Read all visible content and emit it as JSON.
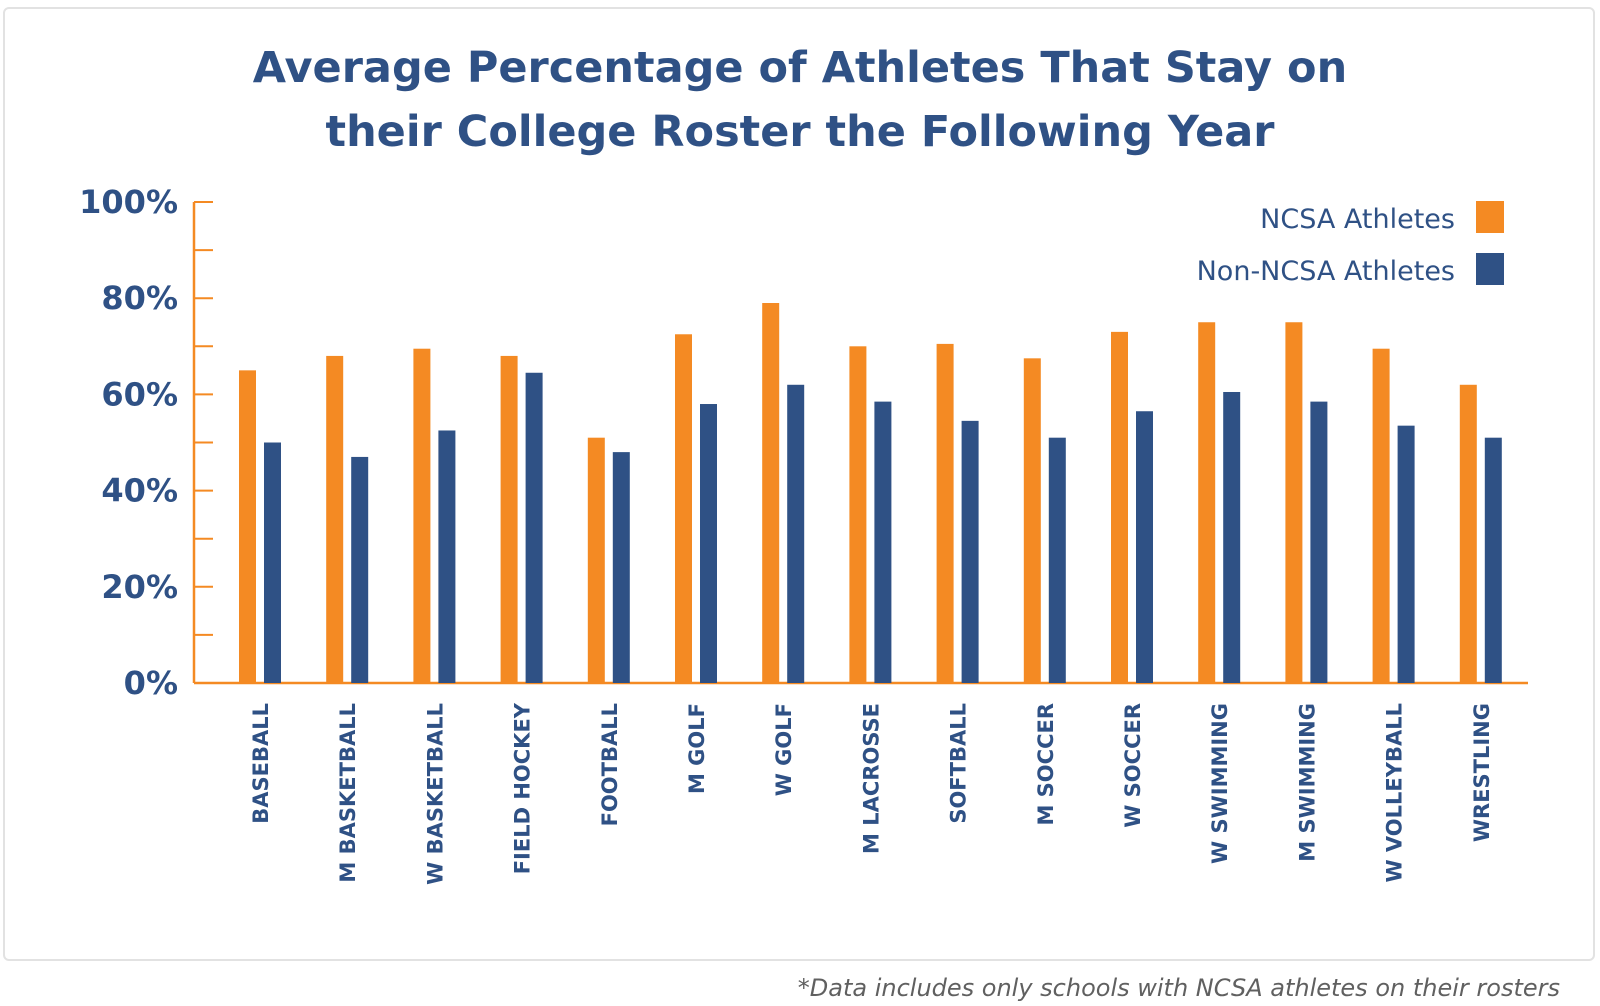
{
  "title_line1": "Average Percentage of Athletes That Stay on",
  "title_line2": "their College Roster the Following Year",
  "footnote": "*Data includes only schools with NCSA athletes on their rosters",
  "colors": {
    "ncsa": "#f48a23",
    "non_ncsa": "#2f5185",
    "axis": "#f48a23",
    "text": "#2f5185"
  },
  "chart_data": {
    "type": "bar",
    "title": "Average Percentage of Athletes That Stay on their College Roster the Following Year",
    "ylim": [
      0,
      100
    ],
    "yticks": [
      "0%",
      "20%",
      "40%",
      "60%",
      "80%",
      "100%"
    ],
    "ytick_values": [
      0,
      20,
      40,
      60,
      80,
      100
    ],
    "grid": false,
    "legend_position": "top-right",
    "categories": [
      "BASEBALL",
      "M BASKETBALL",
      "W BASKETBALL",
      "FIELD HOCKEY",
      "FOOTBALL",
      "M GOLF",
      "W GOLF",
      "M LACROSSE",
      "SOFTBALL",
      "M SOCCER",
      "W SOCCER",
      "W SWIMMING",
      "M SWIMMING",
      "W VOLLEYBALL",
      "WRESTLING"
    ],
    "series": [
      {
        "name": "NCSA Athletes",
        "values": [
          65,
          68,
          69.5,
          68,
          51,
          72.5,
          79,
          70,
          70.5,
          67.5,
          73,
          75,
          75,
          69.5,
          62
        ]
      },
      {
        "name": "Non-NCSA Athletes",
        "values": [
          50,
          47,
          52.5,
          64.5,
          48,
          58,
          62,
          58.5,
          54.5,
          51,
          56.5,
          60.5,
          58.5,
          53.5,
          51
        ]
      }
    ]
  }
}
